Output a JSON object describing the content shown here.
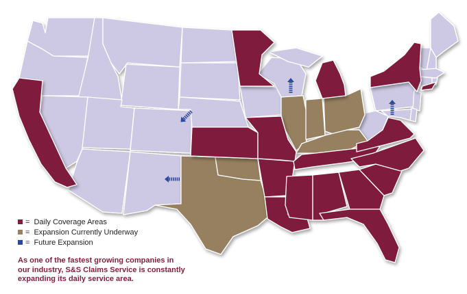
{
  "legend": {
    "items": [
      {
        "label": "Daily Coverage Areas",
        "color": "#7f1f3c",
        "eq": "="
      },
      {
        "label": "Expansion Currently Underway",
        "color": "#97805f",
        "eq": "="
      },
      {
        "label": "Future Expansion",
        "color": "#2d4a9a",
        "eq": "="
      }
    ]
  },
  "caption": {
    "line1": "As one of the fastest growing companies in",
    "line2": "our industry, S&S Claims Service is constantly",
    "line3": "expanding its daily service area."
  },
  "colors": {
    "base": "#cdc9e4",
    "daily": "#7f1f3c",
    "underway": "#97805f",
    "future": "#2d4a9a",
    "border": "#ffffff"
  },
  "arrows": [
    {
      "state": "Nebraska",
      "direction": "down-right",
      "icon": "arrow-icon"
    },
    {
      "state": "Wisconsin",
      "direction": "up",
      "icon": "arrow-icon"
    },
    {
      "state": "Pennsylvania",
      "direction": "up",
      "icon": "arrow-icon"
    },
    {
      "state": "New Mexico",
      "direction": "left",
      "icon": "arrow-icon"
    }
  ]
}
